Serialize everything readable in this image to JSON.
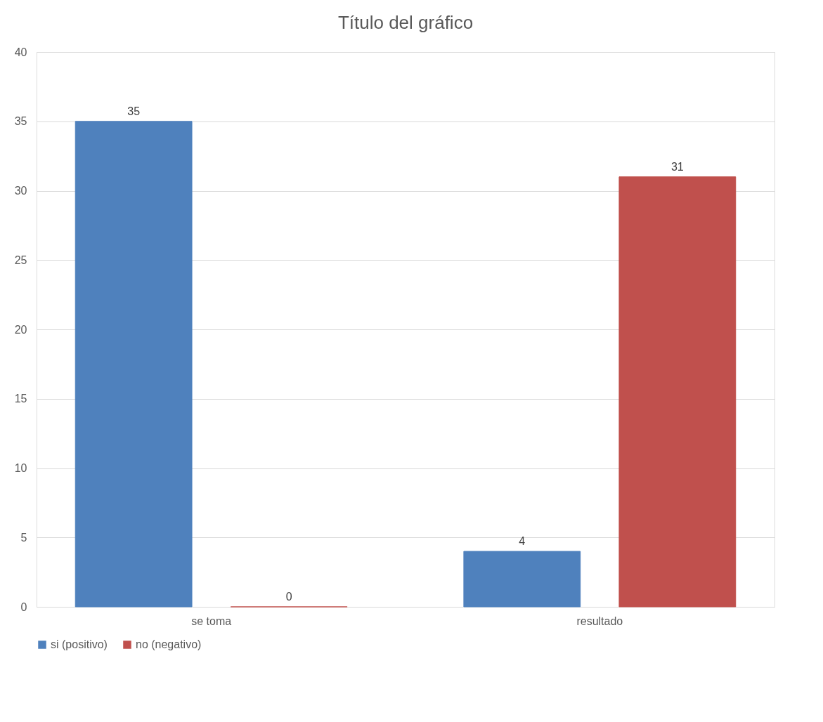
{
  "chart_data": {
    "type": "bar",
    "title": "Título del gráfico",
    "categories": [
      "se toma",
      "resultado"
    ],
    "series": [
      {
        "name": "si (positivo)",
        "color": "#4f81bd",
        "values": [
          35,
          4
        ]
      },
      {
        "name": "no (negativo)",
        "color": "#c0504d",
        "values": [
          0,
          31
        ]
      }
    ],
    "ylim": [
      0,
      40
    ],
    "yticks": [
      0,
      5,
      10,
      15,
      20,
      25,
      30,
      35,
      40
    ],
    "grid": "y",
    "legend": "bottom",
    "data_labels": true
  }
}
